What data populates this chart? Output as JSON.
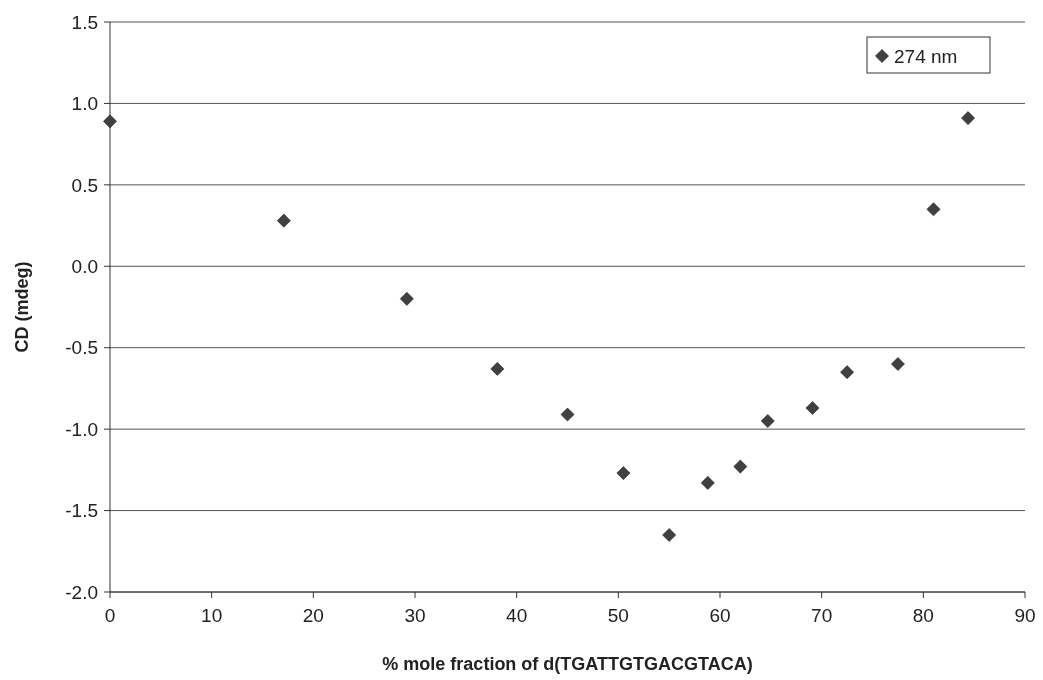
{
  "chart_data": {
    "type": "scatter",
    "xlabel": "% mole fraction of d(TGATTGTGACGTACA)",
    "ylabel": "CD (mdeg)",
    "x": [
      0,
      17.1,
      29.2,
      38.1,
      45.0,
      50.5,
      55.0,
      58.8,
      62.0,
      64.7,
      69.1,
      72.5,
      77.5,
      81.0,
      84.4
    ],
    "series": [
      {
        "name": "274 nm",
        "color": "#404040",
        "values": [
          0.89,
          0.28,
          -0.2,
          -0.63,
          -0.91,
          -1.27,
          -1.65,
          -1.33,
          -1.23,
          -0.95,
          -0.87,
          -0.65,
          -0.6,
          0.35,
          0.91
        ]
      }
    ],
    "xlim": [
      0,
      90
    ],
    "xticks": [
      0,
      10,
      20,
      30,
      40,
      50,
      60,
      70,
      80,
      90
    ],
    "ylim": [
      -2,
      1.5
    ],
    "yticks": [
      {
        "value": -2,
        "label": "-2.0"
      },
      {
        "value": -1.5,
        "label": "-1.5"
      },
      {
        "value": -1,
        "label": "-1.0"
      },
      {
        "value": -0.5,
        "label": "-0.5"
      },
      {
        "value": 0,
        "label": "0.0"
      },
      {
        "value": 0.5,
        "label": "0.5"
      },
      {
        "value": 1,
        "label": "1.0"
      },
      {
        "value": 1.5,
        "label": "1.5"
      }
    ],
    "grid": "y",
    "legend": "top right",
    "marker": "diamond"
  }
}
